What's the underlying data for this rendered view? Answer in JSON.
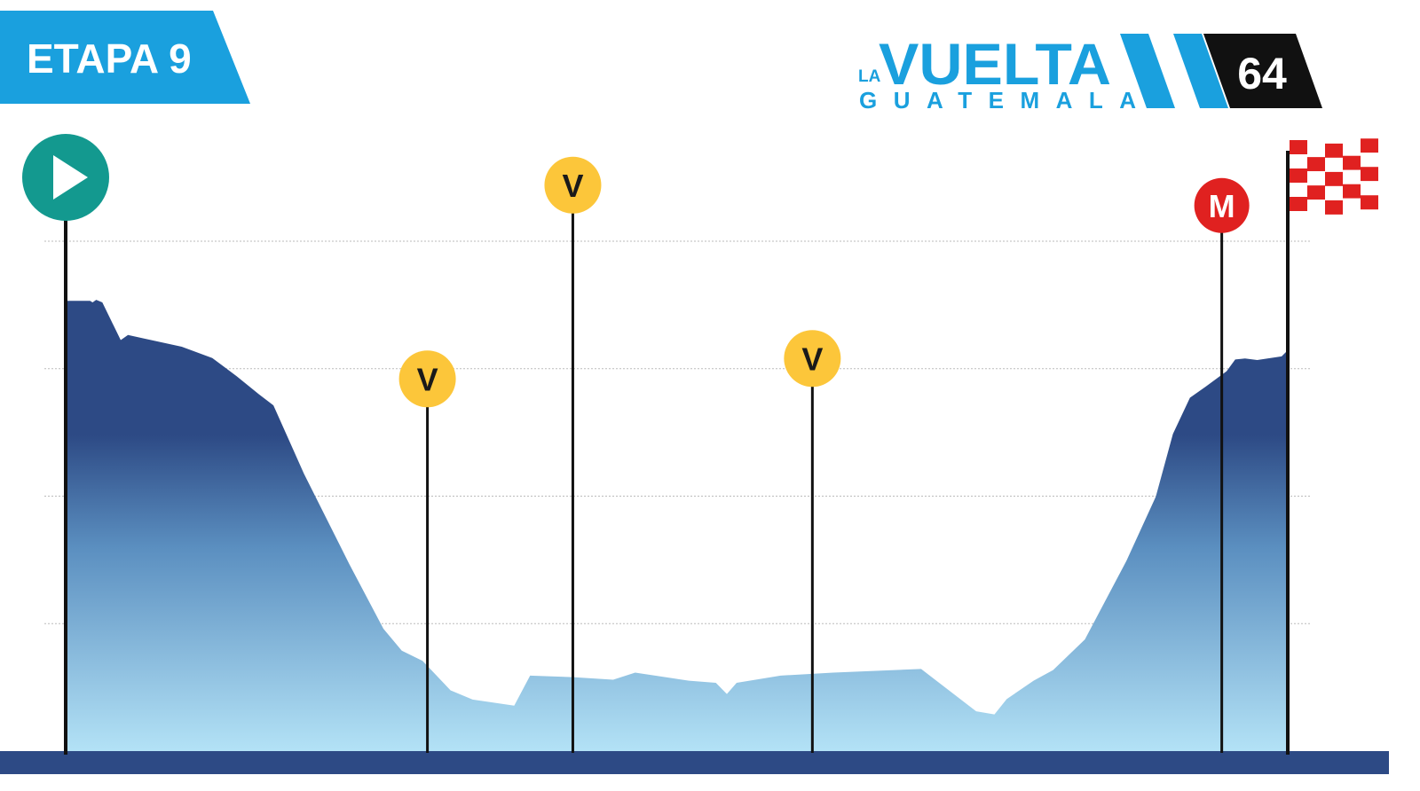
{
  "stage_banner": {
    "label": "ETAPA 9"
  },
  "logo": {
    "small": "LA",
    "name": "VUELTA",
    "country": "GUATEMALA",
    "edition": "64",
    "colors": {
      "blue": "#1aa0de",
      "black": "#111111"
    }
  },
  "chart_data": {
    "type": "area",
    "title": "",
    "xlabel": "",
    "ylabel": "",
    "x_unit": "profile position (0 = start, 1 = finish)",
    "y_unit": "elevation level (0 = baseline, 1 = top grid line)",
    "ylim": [
      0,
      1
    ],
    "grid": true,
    "grid_levels": [
      0.25,
      0.5,
      0.75,
      1.0
    ],
    "colors": {
      "fill_top": "#2d4a85",
      "fill_bottom": "#b3e2f6",
      "baseline": "#2d4a85",
      "grid": "#bbbbbb"
    },
    "profile": [
      [
        0.0,
        0.883
      ],
      [
        0.02,
        0.883
      ],
      [
        0.022,
        0.88
      ],
      [
        0.025,
        0.885
      ],
      [
        0.03,
        0.88
      ],
      [
        0.045,
        0.806
      ],
      [
        0.051,
        0.816
      ],
      [
        0.095,
        0.793
      ],
      [
        0.12,
        0.771
      ],
      [
        0.14,
        0.735
      ],
      [
        0.158,
        0.7
      ],
      [
        0.17,
        0.678
      ],
      [
        0.195,
        0.544
      ],
      [
        0.232,
        0.367
      ],
      [
        0.26,
        0.24
      ],
      [
        0.275,
        0.197
      ],
      [
        0.292,
        0.177
      ],
      [
        0.315,
        0.119
      ],
      [
        0.333,
        0.101
      ],
      [
        0.367,
        0.089
      ],
      [
        0.38,
        0.148
      ],
      [
        0.415,
        0.145
      ],
      [
        0.448,
        0.14
      ],
      [
        0.466,
        0.154
      ],
      [
        0.51,
        0.138
      ],
      [
        0.532,
        0.134
      ],
      [
        0.541,
        0.112
      ],
      [
        0.549,
        0.134
      ],
      [
        0.585,
        0.148
      ],
      [
        0.628,
        0.154
      ],
      [
        0.7,
        0.161
      ],
      [
        0.745,
        0.078
      ],
      [
        0.76,
        0.072
      ],
      [
        0.77,
        0.102
      ],
      [
        0.792,
        0.138
      ],
      [
        0.808,
        0.159
      ],
      [
        0.834,
        0.219
      ],
      [
        0.868,
        0.373
      ],
      [
        0.892,
        0.499
      ],
      [
        0.906,
        0.622
      ],
      [
        0.92,
        0.693
      ],
      [
        0.933,
        0.715
      ],
      [
        0.95,
        0.745
      ],
      [
        0.957,
        0.768
      ],
      [
        0.965,
        0.77
      ],
      [
        0.975,
        0.767
      ],
      [
        0.995,
        0.774
      ],
      [
        1.0,
        0.786
      ]
    ],
    "markers": [
      {
        "type": "start",
        "x": 0.0,
        "icon": "play-icon",
        "color": "#13998f"
      },
      {
        "type": "sprint",
        "x": 0.296,
        "label": "V",
        "level": 0.73,
        "color": "#fcc63a"
      },
      {
        "type": "sprint",
        "x": 0.415,
        "label": "V",
        "level": 1.11,
        "color": "#fcc63a"
      },
      {
        "type": "sprint",
        "x": 0.611,
        "label": "V",
        "level": 0.77,
        "color": "#fcc63a"
      },
      {
        "type": "mountain",
        "x": 0.946,
        "label": "M",
        "level": 1.07,
        "color": "#e02120"
      },
      {
        "type": "finish",
        "x": 1.0,
        "icon": "checkered-flag-icon",
        "color": "#e02120"
      }
    ]
  }
}
